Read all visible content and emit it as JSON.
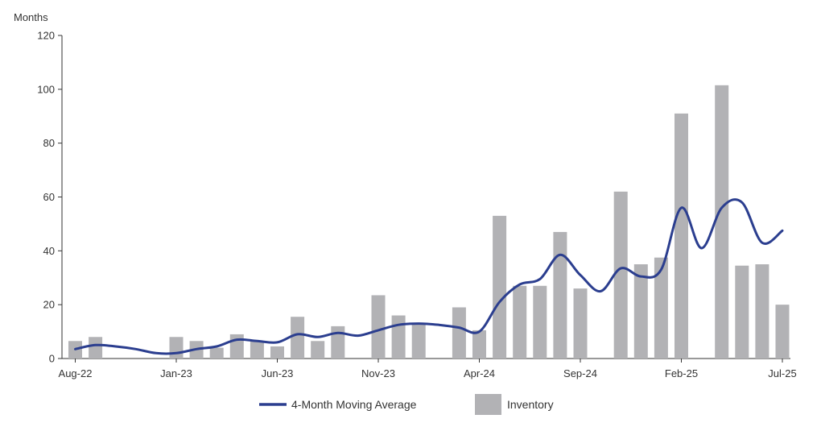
{
  "chart_data": {
    "type": "bar",
    "ylabel": "Months",
    "ylim": [
      0,
      120
    ],
    "yticks": [
      "0",
      "20",
      "40",
      "60",
      "80",
      "100",
      "120"
    ],
    "grid": false,
    "legend_position": "bottom-center",
    "x": [
      "Aug-22",
      "Sep-22",
      "Oct-22",
      "Nov-22",
      "Dec-22",
      "Jan-23",
      "Feb-23",
      "Mar-23",
      "Apr-23",
      "May-23",
      "Jun-23",
      "Jul-23",
      "Aug-23",
      "Sep-23",
      "Oct-23",
      "Nov-23",
      "Dec-23",
      "Jan-24",
      "Feb-24",
      "Mar-24",
      "Apr-24",
      "May-24",
      "Jun-24",
      "Jul-24",
      "Aug-24",
      "Sep-24",
      "Oct-24",
      "Nov-24",
      "Dec-24",
      "Jan-25",
      "Feb-25",
      "Mar-25",
      "Apr-25",
      "May-25",
      "Jun-25",
      "Jul-25"
    ],
    "xtick_labels": [
      {
        "label": "Aug-22",
        "index": 0
      },
      {
        "label": "Jan-23",
        "index": 5
      },
      {
        "label": "Jun-23",
        "index": 10
      },
      {
        "label": "Nov-23",
        "index": 15
      },
      {
        "label": "Apr-24",
        "index": 20
      },
      {
        "label": "Sep-24",
        "index": 25
      },
      {
        "label": "Feb-25",
        "index": 30
      },
      {
        "label": "Jul-25",
        "index": 35
      }
    ],
    "series": [
      {
        "name": "Inventory",
        "kind": "bar",
        "color": "#b2b2b5",
        "values": [
          6.5,
          8,
          null,
          null,
          null,
          8,
          6.5,
          4,
          9,
          6.5,
          4.5,
          15.5,
          6.5,
          12,
          null,
          23.5,
          16,
          13,
          null,
          19,
          10.5,
          53,
          27,
          27,
          47,
          26,
          null,
          62,
          35,
          37.5,
          91,
          null,
          101.5,
          34.5,
          35,
          20
        ]
      },
      {
        "name": "4-Month Moving Average",
        "kind": "line",
        "color": "#2b3e8f",
        "values": [
          3.5,
          5,
          4.5,
          3.5,
          2,
          2,
          3.5,
          4.5,
          7,
          6.5,
          6,
          9,
          8,
          9.5,
          8.5,
          10.5,
          12.5,
          13,
          12.5,
          11.5,
          10,
          21,
          27.5,
          29.5,
          38.5,
          31,
          25,
          33.5,
          30.5,
          33,
          56,
          41,
          56,
          58,
          43,
          47.5
        ]
      }
    ]
  }
}
